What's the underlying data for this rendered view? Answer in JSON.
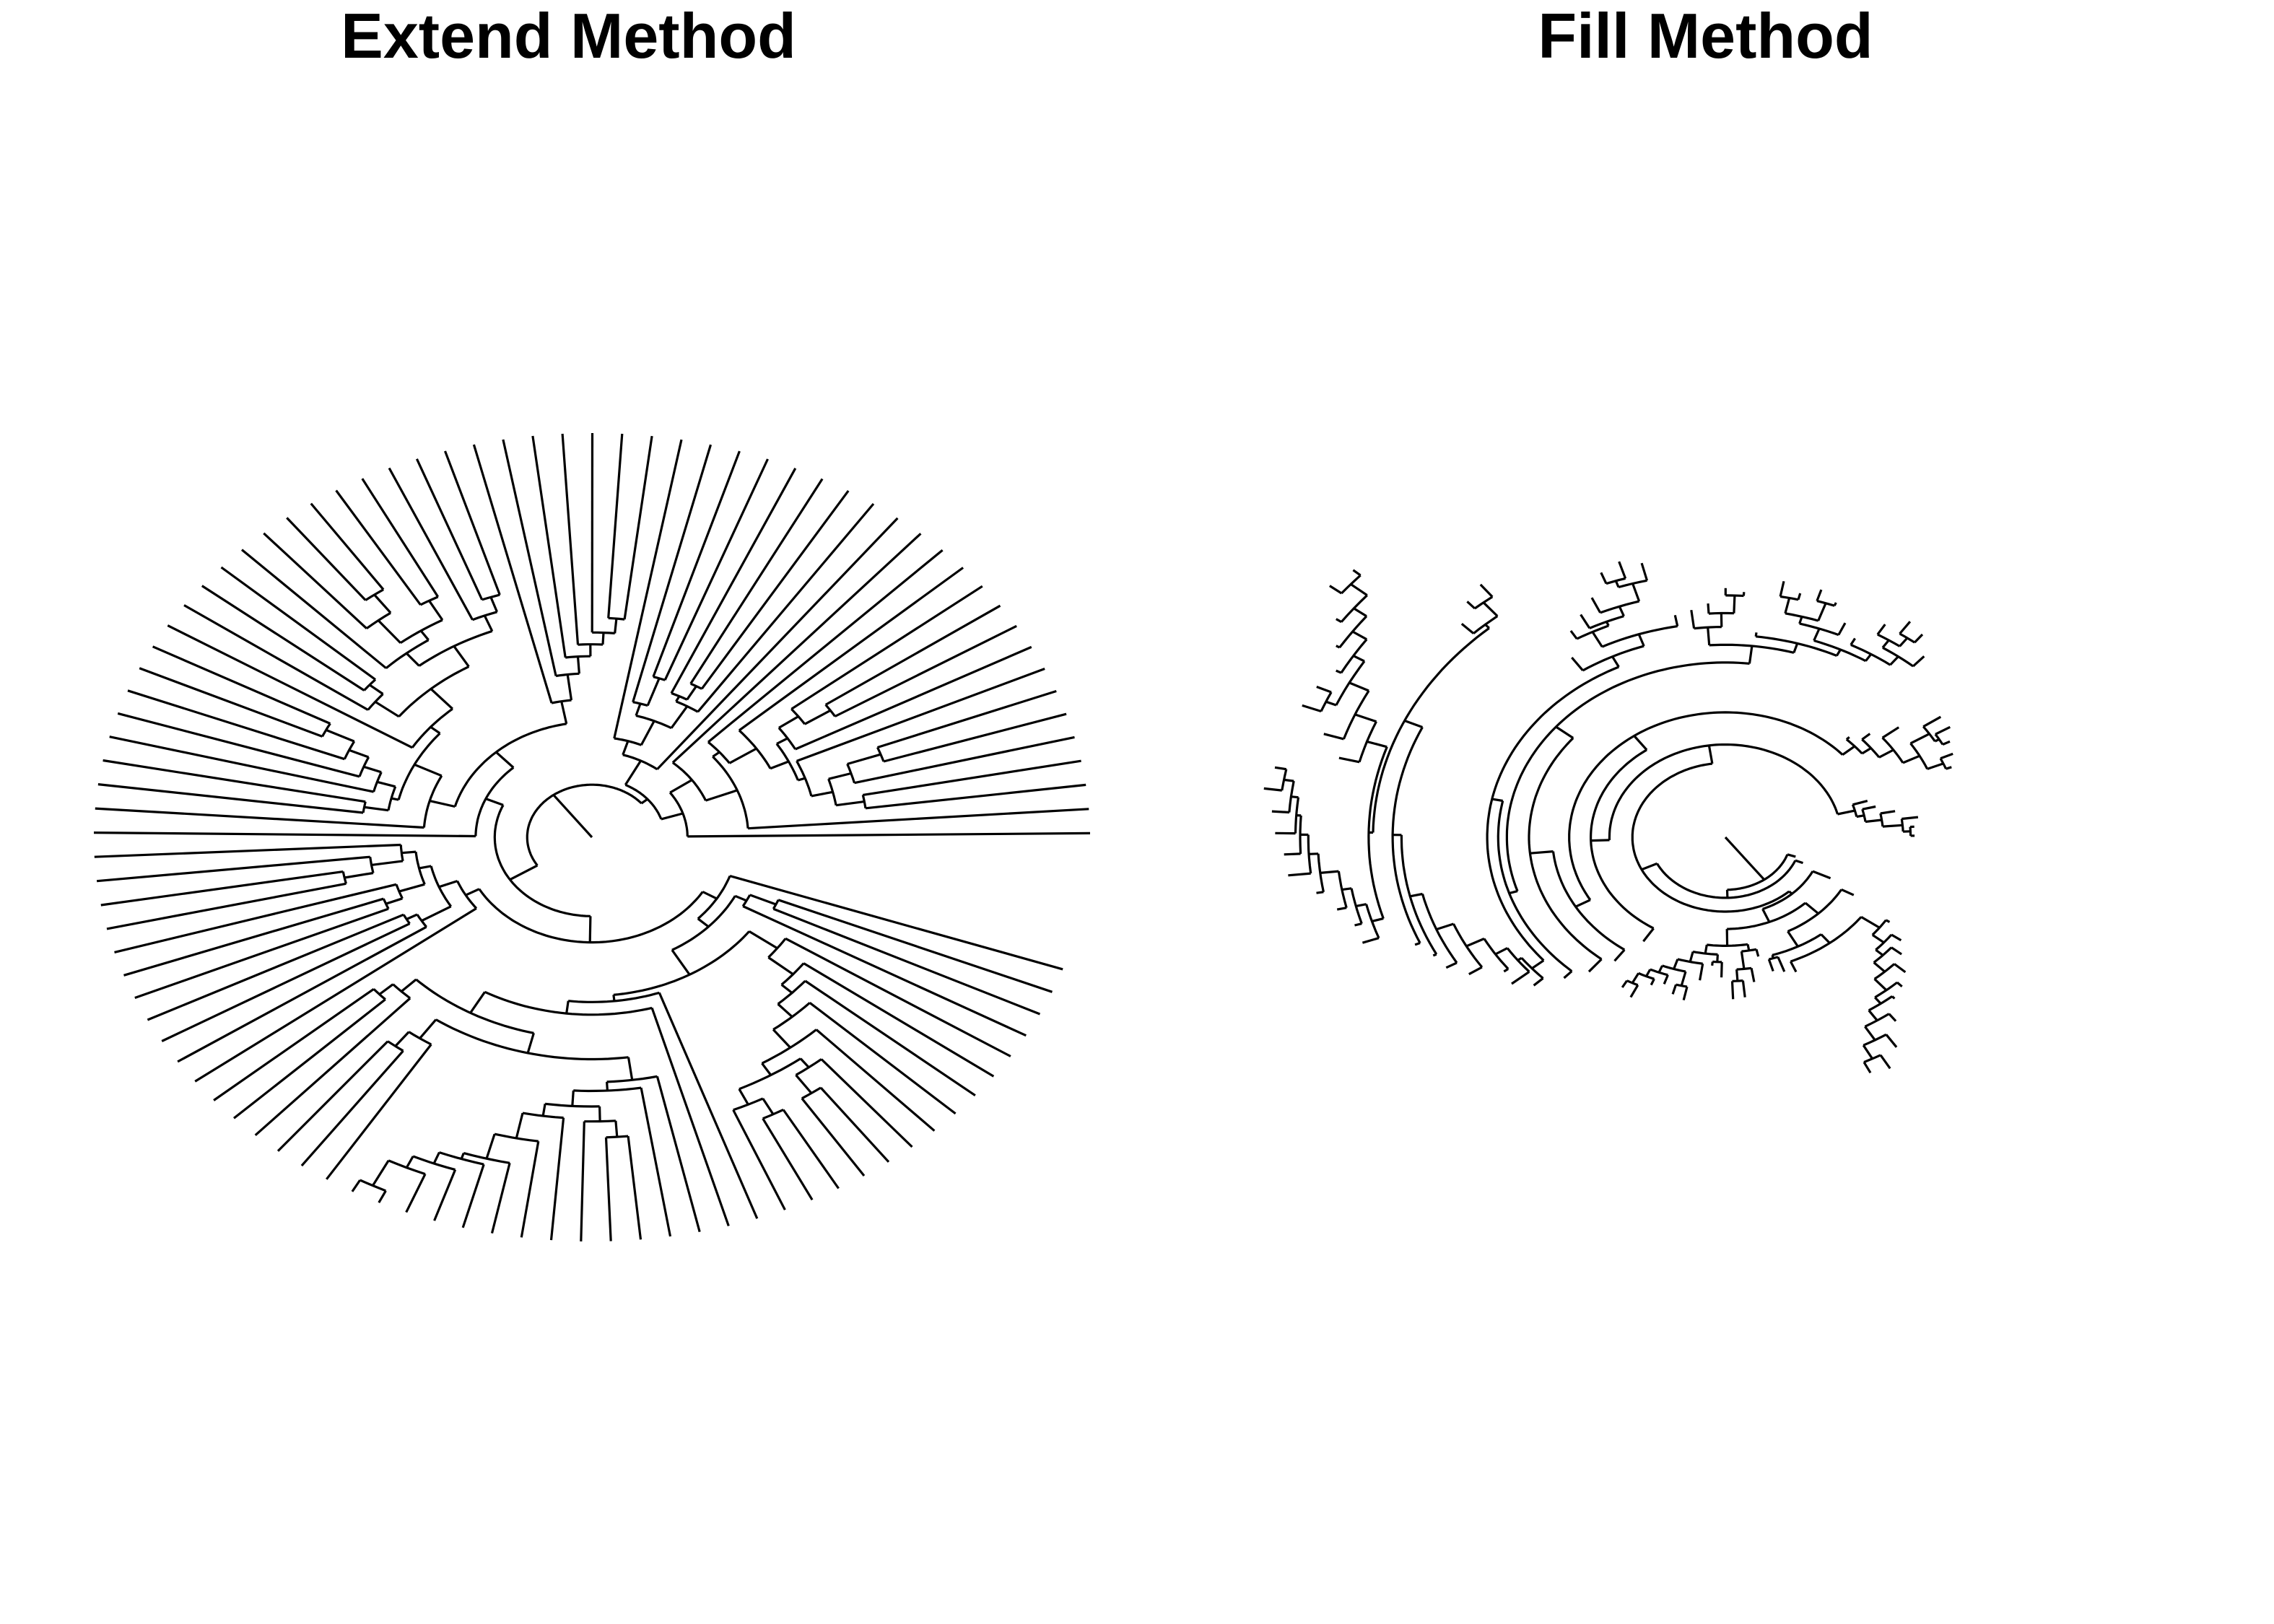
{
  "figure": {
    "panels": [
      {
        "id": "extend",
        "title": "Extend Method"
      },
      {
        "id": "fill",
        "title": "Fill Method"
      }
    ]
  },
  "chart_data": [
    {
      "type": "circular-phylogram",
      "title": "Extend Method",
      "method": "extend",
      "tip_count": 100,
      "leaf_arrangement": "tips extended to outer radius",
      "line_color": "#000000"
    },
    {
      "type": "circular-phylogram",
      "title": "Fill Method",
      "method": "fill",
      "tip_count": 100,
      "leaf_arrangement": "tips at branch-length depth",
      "line_color": "#000000"
    }
  ]
}
